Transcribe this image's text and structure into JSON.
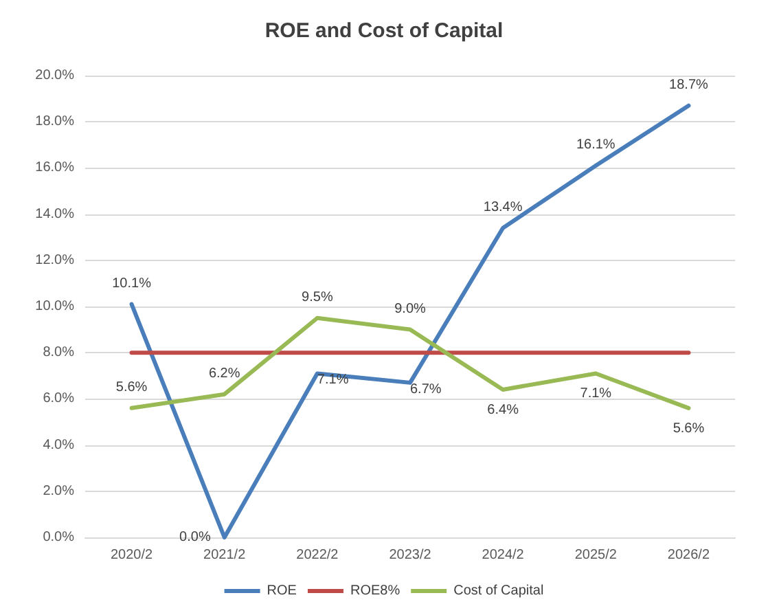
{
  "chart_data": {
    "type": "line",
    "title": "ROE and Cost of Capital",
    "categories": [
      "2020/2",
      "2021/2",
      "2022/2",
      "2023/2",
      "2024/2",
      "2025/2",
      "2026/2"
    ],
    "series": [
      {
        "name": "ROE",
        "color": "#4a7ebb",
        "values": [
          10.1,
          0.0,
          7.1,
          6.7,
          13.4,
          16.1,
          18.7
        ],
        "value_labels": [
          "10.1%",
          "0.0%",
          "7.1%",
          "6.7%",
          "13.4%",
          "16.1%",
          "18.7%"
        ]
      },
      {
        "name": "ROE8%",
        "color": "#be4b48",
        "values": [
          8,
          8,
          8,
          8,
          8,
          8,
          8
        ]
      },
      {
        "name": "Cost of Capital",
        "color": "#98b954",
        "values": [
          5.6,
          6.2,
          9.5,
          9.0,
          6.4,
          7.1,
          5.6
        ],
        "value_labels": [
          "5.6%",
          "6.2%",
          "9.5%",
          "9.0%",
          "6.4%",
          "7.1%",
          "5.6%"
        ]
      }
    ],
    "ylim": [
      0,
      20
    ],
    "yticks": [
      {
        "value": 0,
        "label": "0.0%"
      },
      {
        "value": 2,
        "label": "2.0%"
      },
      {
        "value": 4,
        "label": "4.0%"
      },
      {
        "value": 6,
        "label": "6.0%"
      },
      {
        "value": 8,
        "label": "8.0%"
      },
      {
        "value": 10,
        "label": "10.0%"
      },
      {
        "value": 12,
        "label": "12.0%"
      },
      {
        "value": 14,
        "label": "14.0%"
      },
      {
        "value": 16,
        "label": "16.0%"
      },
      {
        "value": 18,
        "label": "18.0%"
      },
      {
        "value": 20,
        "label": "20.0%"
      }
    ],
    "grid": "y",
    "legend": "bottom",
    "marker": "none",
    "line_style": "solid"
  }
}
